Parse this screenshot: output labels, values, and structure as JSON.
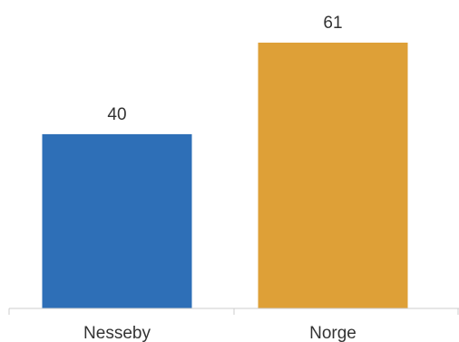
{
  "chart_data": {
    "type": "bar",
    "categories": [
      "Nesseby",
      "Norge"
    ],
    "values": [
      40,
      61
    ],
    "colors": [
      "#2e6fb7",
      "#dea037"
    ],
    "ylim": [
      0,
      65
    ],
    "grid": false,
    "title": "",
    "xlabel": "",
    "ylabel": ""
  }
}
